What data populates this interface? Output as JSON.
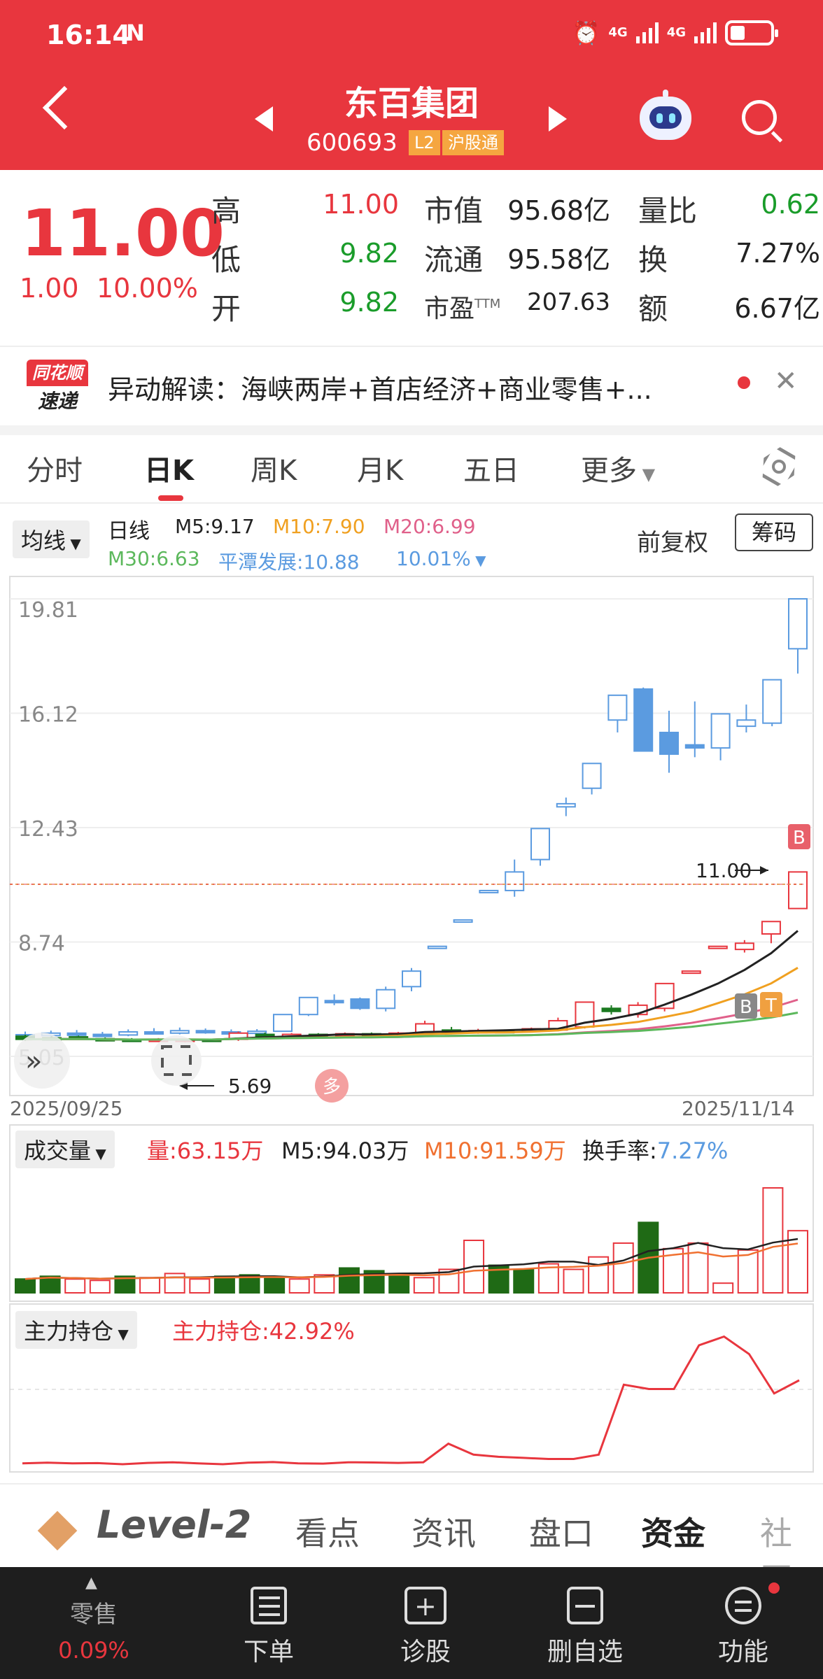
{
  "status_bar": {
    "time": "16:14",
    "nfc": "N",
    "signal1": "4G",
    "signal2": "4G"
  },
  "header": {
    "name": "东百集团",
    "code": "600693",
    "tag_l2": "L2",
    "tag_market": "沪股通"
  },
  "quote": {
    "price": "11.00",
    "change": "1.00",
    "change_pct": "10.00%",
    "high_label": "高",
    "high": "11.00",
    "low_label": "低",
    "low": "9.82",
    "open_label": "开",
    "open": "9.82",
    "mcap_label": "市值",
    "mcap": "95.68亿",
    "float_label": "流通",
    "float": "95.58亿",
    "pe_label": "市盈",
    "pe_sup": "TTM",
    "pe": "207.63",
    "vr_label": "量比",
    "vr": "0.62",
    "turn_label": "换",
    "turn": "7.27%",
    "amt_label": "额",
    "amt": "6.67亿"
  },
  "news": {
    "logo_top": "同花顺",
    "logo_bottom": "速递",
    "text": "异动解读：海峡两岸+首店经济+商业零售+..."
  },
  "tabs": [
    "分时",
    "日K",
    "周K",
    "月K",
    "五日",
    "更多"
  ],
  "active_tab": "日K",
  "indicators": {
    "ma_select": "均线",
    "period": "日线",
    "m5": "M5:9.17",
    "m10": "M10:7.90",
    "m20": "M20:6.99",
    "m30": "M30:6.63",
    "pingtan": "平潭发展:10.88",
    "pingtan_pct": "10.01%",
    "adjust": "前复权",
    "chips": "筹码"
  },
  "chart_data": [
    {
      "type": "candlestick",
      "y_ticks": [
        "19.81",
        "16.12",
        "12.43",
        "8.74",
        "5.05"
      ],
      "ylim": [
        5.05,
        19.81
      ],
      "x_start": "2025/09/25",
      "x_end": "2025/11/14",
      "last_price_label": "11.00",
      "low_marker_label": "5.69",
      "candles": [
        {
          "o": 5.75,
          "c": 5.7,
          "h": 5.85,
          "l": 5.62
        },
        {
          "o": 5.72,
          "c": 5.8,
          "h": 5.88,
          "l": 5.66
        },
        {
          "o": 5.8,
          "c": 5.76,
          "h": 5.9,
          "l": 5.7
        },
        {
          "o": 5.76,
          "c": 5.74,
          "h": 5.84,
          "l": 5.69
        },
        {
          "o": 5.74,
          "c": 5.84,
          "h": 5.92,
          "l": 5.7
        },
        {
          "o": 5.84,
          "c": 5.8,
          "h": 5.96,
          "l": 5.75
        },
        {
          "o": 5.8,
          "c": 5.88,
          "h": 5.98,
          "l": 5.76
        },
        {
          "o": 5.88,
          "c": 5.84,
          "h": 5.95,
          "l": 5.78
        },
        {
          "o": 5.84,
          "c": 5.8,
          "h": 5.92,
          "l": 5.74
        },
        {
          "o": 5.8,
          "c": 5.86,
          "h": 5.93,
          "l": 5.76
        },
        {
          "o": 5.86,
          "c": 6.4,
          "h": 6.4,
          "l": 5.84
        },
        {
          "o": 6.4,
          "c": 6.95,
          "h": 6.95,
          "l": 6.35
        },
        {
          "o": 6.85,
          "c": 6.82,
          "h": 7.05,
          "l": 6.7
        },
        {
          "o": 6.9,
          "c": 6.6,
          "h": 6.95,
          "l": 6.55
        },
        {
          "o": 6.6,
          "c": 7.2,
          "h": 7.3,
          "l": 6.5
        },
        {
          "o": 7.3,
          "c": 7.8,
          "h": 7.9,
          "l": 7.15
        },
        {
          "o": 8.6,
          "c": 8.6,
          "h": 8.6,
          "l": 8.6
        },
        {
          "o": 9.45,
          "c": 9.45,
          "h": 9.45,
          "l": 9.45
        },
        {
          "o": 10.4,
          "c": 10.4,
          "h": 10.4,
          "l": 10.4
        },
        {
          "o": 10.4,
          "c": 11.0,
          "h": 11.4,
          "l": 10.2
        },
        {
          "o": 11.4,
          "c": 12.4,
          "h": 12.4,
          "l": 11.2
        },
        {
          "o": 13.1,
          "c": 13.2,
          "h": 13.4,
          "l": 12.8
        },
        {
          "o": 13.7,
          "c": 14.5,
          "h": 14.5,
          "l": 13.5
        },
        {
          "o": 15.9,
          "c": 16.7,
          "h": 16.7,
          "l": 15.5
        },
        {
          "o": 16.9,
          "c": 14.9,
          "h": 16.95,
          "l": 14.9
        },
        {
          "o": 15.5,
          "c": 14.8,
          "h": 16.2,
          "l": 14.2
        },
        {
          "o": 15.1,
          "c": 15.0,
          "h": 16.5,
          "l": 14.7
        },
        {
          "o": 15.0,
          "c": 16.1,
          "h": 16.1,
          "l": 14.6
        },
        {
          "o": 15.7,
          "c": 15.9,
          "h": 16.4,
          "l": 15.5
        },
        {
          "o": 15.8,
          "c": 17.2,
          "h": 17.2,
          "l": 15.7
        },
        {
          "o": 18.2,
          "c": 19.81,
          "h": 19.81,
          "l": 17.4
        }
      ],
      "candles_red": [
        {
          "o": 5.7,
          "c": 5.6,
          "h": 5.75,
          "l": 5.55
        },
        {
          "o": 5.65,
          "c": 5.62,
          "h": 5.7,
          "l": 5.58
        },
        {
          "o": 5.68,
          "c": 5.6,
          "h": 5.72,
          "l": 5.58
        },
        {
          "o": 5.62,
          "c": 5.58,
          "h": 5.66,
          "l": 5.55
        },
        {
          "o": 5.6,
          "c": 5.56,
          "h": 5.64,
          "l": 5.52
        },
        {
          "o": 5.58,
          "c": 5.6,
          "h": 5.64,
          "l": 5.52
        },
        {
          "o": 5.56,
          "c": 5.6,
          "h": 5.62,
          "l": 5.5
        },
        {
          "o": 5.6,
          "c": 5.58,
          "h": 5.62,
          "l": 5.54
        },
        {
          "o": 5.6,
          "c": 5.8,
          "h": 5.85,
          "l": 5.55
        },
        {
          "o": 5.76,
          "c": 5.74,
          "h": 5.82,
          "l": 5.7
        },
        {
          "o": 5.74,
          "c": 5.76,
          "h": 5.8,
          "l": 5.7
        },
        {
          "o": 5.76,
          "c": 5.74,
          "h": 5.8,
          "l": 5.7
        },
        {
          "o": 5.74,
          "c": 5.78,
          "h": 5.82,
          "l": 5.7
        },
        {
          "o": 5.78,
          "c": 5.76,
          "h": 5.82,
          "l": 5.72
        },
        {
          "o": 5.76,
          "c": 5.8,
          "h": 5.84,
          "l": 5.72
        },
        {
          "o": 5.8,
          "c": 6.1,
          "h": 6.2,
          "l": 5.76
        },
        {
          "o": 5.9,
          "c": 5.82,
          "h": 6.0,
          "l": 5.76
        },
        {
          "o": 5.82,
          "c": 5.88,
          "h": 5.94,
          "l": 5.78
        },
        {
          "o": 5.88,
          "c": 5.86,
          "h": 5.92,
          "l": 5.8
        },
        {
          "o": 5.86,
          "c": 5.94,
          "h": 5.98,
          "l": 5.82
        },
        {
          "o": 5.9,
          "c": 6.2,
          "h": 6.3,
          "l": 5.86
        },
        {
          "o": 6.0,
          "c": 6.8,
          "h": 6.8,
          "l": 5.95
        },
        {
          "o": 6.6,
          "c": 6.5,
          "h": 6.7,
          "l": 6.4
        },
        {
          "o": 6.4,
          "c": 6.7,
          "h": 6.8,
          "l": 6.3
        },
        {
          "o": 6.6,
          "c": 7.4,
          "h": 7.4,
          "l": 6.5
        },
        {
          "o": 7.8,
          "c": 7.8,
          "h": 7.8,
          "l": 7.8
        },
        {
          "o": 8.6,
          "c": 8.6,
          "h": 8.6,
          "l": 8.6
        },
        {
          "o": 8.5,
          "c": 8.7,
          "h": 8.8,
          "l": 8.4
        },
        {
          "o": 9.0,
          "c": 9.4,
          "h": 9.4,
          "l": 8.7
        },
        {
          "o": 9.82,
          "c": 11.0,
          "h": 11.0,
          "l": 9.82
        }
      ]
    },
    {
      "type": "bar",
      "label": "成交量",
      "volume": "量:63.15万",
      "m5": "M5:94.03万",
      "m10": "M10:91.59万",
      "turnover_label": "换手率:",
      "turnover": "7.27%",
      "values": [
        10,
        12,
        10,
        9,
        12,
        11,
        14,
        10,
        12,
        13,
        11,
        10,
        13,
        18,
        16,
        13,
        11,
        17,
        38,
        20,
        17,
        21,
        17,
        26,
        36,
        51,
        32,
        36,
        7,
        31,
        76,
        45
      ],
      "up": [
        0,
        0,
        1,
        1,
        0,
        1,
        1,
        1,
        0,
        0,
        0,
        1,
        1,
        0,
        0,
        0,
        1,
        1,
        1,
        0,
        0,
        1,
        1,
        1,
        1,
        0,
        1,
        1,
        1,
        1,
        1,
        1
      ]
    },
    {
      "type": "line",
      "label": "主力持仓",
      "value_label": "主力持仓:42.92%",
      "values": [
        2,
        2.3,
        2,
        2.1,
        1.6,
        2.2,
        2.5,
        2,
        1.6,
        2.3,
        2.6,
        2,
        1.9,
        2.5,
        2.4,
        2.2,
        2.5,
        11,
        6,
        5,
        4.5,
        4,
        4,
        6,
        38,
        36,
        36,
        56,
        60,
        52,
        34,
        40
      ]
    }
  ],
  "bottom_tabs": {
    "level2": "Level-2",
    "items": [
      "看点",
      "资讯",
      "盘口",
      "资金",
      "社区"
    ],
    "active": "资金"
  },
  "footer": {
    "sector_label": "零售",
    "sector_pct": "0.09%",
    "items": [
      "下单",
      "诊股",
      "删自选",
      "功能"
    ]
  },
  "colors": {
    "up": "#e8363e",
    "down": "#1a9c2a",
    "accent": "#e8363e",
    "ma5": "#222222",
    "ma10": "#f0a020",
    "ma20": "#e0608a",
    "ma30": "#5cb85c",
    "blue": "#5b9be0"
  }
}
